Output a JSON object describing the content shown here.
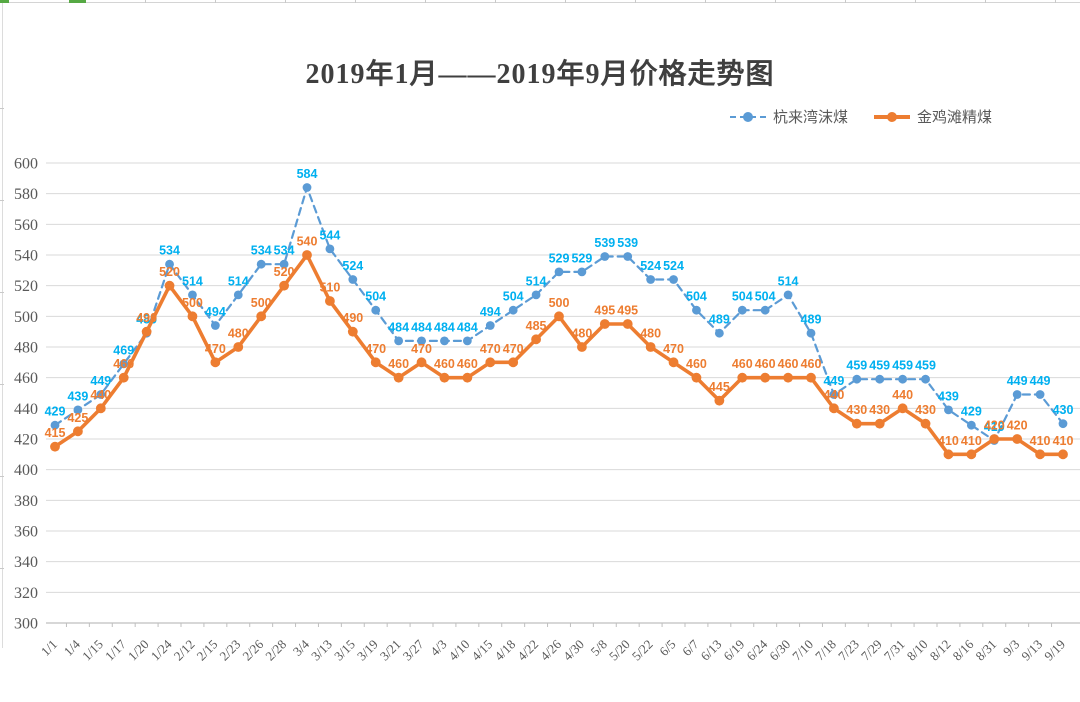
{
  "title": "2019年1月——2019年9月价格走势图",
  "legend": {
    "items": [
      {
        "label": "杭来湾沫煤",
        "style": "dashed",
        "color": "#5B9BD5"
      },
      {
        "label": "金鸡滩精煤",
        "style": "solid",
        "color": "#ED7D31"
      }
    ]
  },
  "colors": {
    "series1_line": "#5B9BD5",
    "series1_label": "#00B0F0",
    "series2_line": "#ED7D31",
    "series2_label": "#ED7D31",
    "gridline": "#D9D9D9",
    "axis": "#BFBFBF",
    "axis_text": "#595959",
    "title_text": "#3F3F3F"
  },
  "chart_data": {
    "type": "line",
    "title": "2019年1月——2019年9月价格走势图",
    "xlabel": "",
    "ylabel": "",
    "ylim": [
      300,
      600
    ],
    "ytick_step": 20,
    "ytick_labels": [
      "600",
      "580",
      "560",
      "540",
      "520",
      "500",
      "480",
      "460",
      "440",
      "420",
      "400",
      "380",
      "360",
      "340",
      "320",
      "300"
    ],
    "grid": true,
    "legend_position": "top-right",
    "categories": [
      "1/1",
      "1/4",
      "1/15",
      "1/17",
      "1/20",
      "1/24",
      "2/12",
      "2/15",
      "2/23",
      "2/26",
      "2/28",
      "3/4",
      "3/13",
      "3/15",
      "3/19",
      "3/21",
      "3/27",
      "4/3",
      "4/10",
      "4/15",
      "4/18",
      "4/22",
      "4/26",
      "4/30",
      "5/8",
      "5/20",
      "5/22",
      "6/5",
      "6/7",
      "6/13",
      "6/19",
      "6/24",
      "6/30",
      "7/10",
      "7/18",
      "7/23",
      "7/29",
      "7/31",
      "8/10",
      "8/12",
      "8/16",
      "8/31",
      "9/3",
      "9/13",
      "9/19"
    ],
    "series": [
      {
        "name": "杭来湾沫煤",
        "line_style": "dashed",
        "color": "#5B9BD5",
        "label_color": "#00B0F0",
        "values": [
          429,
          439,
          449,
          469,
          489,
          534,
          514,
          494,
          514,
          534,
          534,
          584,
          544,
          524,
          504,
          484,
          484,
          484,
          484,
          494,
          504,
          514,
          529,
          529,
          539,
          539,
          524,
          524,
          504,
          489,
          504,
          504,
          514,
          489,
          449,
          459,
          459,
          459,
          459,
          439,
          429,
          419,
          449,
          449,
          430
        ]
      },
      {
        "name": "金鸡滩精煤",
        "line_style": "solid",
        "color": "#ED7D31",
        "label_color": "#ED7D31",
        "values": [
          415,
          425,
          440,
          460,
          490,
          520,
          500,
          470,
          480,
          500,
          520,
          540,
          510,
          490,
          470,
          460,
          470,
          460,
          460,
          470,
          470,
          485,
          500,
          480,
          495,
          495,
          480,
          470,
          460,
          445,
          460,
          460,
          460,
          460,
          440,
          430,
          430,
          440,
          430,
          410,
          410,
          420,
          420,
          410,
          410
        ]
      }
    ]
  }
}
